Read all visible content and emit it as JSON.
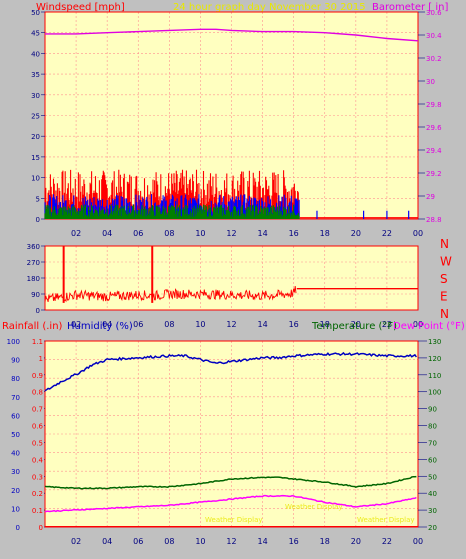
{
  "header": {
    "windspeed_label": "Windspeed [mph]",
    "title": "24 hour graph day   November 30 2015",
    "barometer_label": "Barometer [ in]"
  },
  "colors": {
    "background": "#c0c0c0",
    "plot_bg": "#ffffc0",
    "grid": "#ff9090",
    "axis_text": "#000080",
    "title_text": "#e8e800",
    "wind_avg": "#008000",
    "wind_gust_blue": "#0000ff",
    "wind_gust_red": "#ff0000",
    "barometer": "#e000e0",
    "direction": "#ff0000",
    "humidity": "#0000c0",
    "temperature": "#006400",
    "dewpoint": "#ff00ff",
    "rain": "#ff0000"
  },
  "x_ticks": [
    "02",
    "04",
    "06",
    "08",
    "10",
    "12",
    "14",
    "16",
    "18",
    "20",
    "22",
    "00"
  ],
  "chart_data": [
    {
      "id": "wind_baro",
      "type": "line",
      "ylabel": "Windspeed [mph]",
      "y2label": "Barometer [ in]",
      "ylim": [
        0,
        50
      ],
      "y_ticks": [
        0,
        5,
        10,
        15,
        20,
        25,
        30,
        35,
        40,
        45,
        50
      ],
      "y2lim": [
        28.8,
        30.6
      ],
      "y2_ticks": [
        "28.8",
        "29",
        "29.2",
        "29.4",
        "29.6",
        "29.8",
        "30",
        "30.2",
        "30.4",
        "30.6"
      ],
      "barometer": {
        "x": [
          0,
          2,
          4,
          6,
          8,
          10,
          11,
          12,
          14,
          16,
          18,
          20,
          22,
          24
        ],
        "y": [
          30.41,
          30.41,
          30.42,
          30.43,
          30.44,
          30.45,
          30.45,
          30.44,
          30.43,
          30.43,
          30.42,
          30.4,
          30.37,
          30.35
        ]
      },
      "wind_series": [
        {
          "color": "#ff0000",
          "level_max": 12,
          "end_hour": 16.4
        },
        {
          "color": "#0000ff",
          "level_max": 6,
          "end_hour": 16.4
        },
        {
          "color": "#008000",
          "level_max": 3.5,
          "end_hour": 16.4
        }
      ]
    },
    {
      "id": "direction",
      "type": "line",
      "ylim": [
        0,
        360
      ],
      "y_ticks": [
        "0",
        "90",
        "180",
        "270",
        "360"
      ],
      "y2_labels": [
        "N",
        "W",
        "S",
        "E",
        "N"
      ],
      "direction": {
        "x": [
          0,
          1,
          2,
          4,
          6,
          7,
          8,
          10,
          12,
          14,
          15,
          16,
          16.2,
          24
        ],
        "y": [
          60,
          70,
          85,
          75,
          85,
          80,
          90,
          90,
          85,
          80,
          85,
          95,
          120,
          120
        ]
      },
      "spikes": [
        {
          "x": 1.2,
          "y": 360
        },
        {
          "x": 6.9,
          "y": 360
        }
      ]
    },
    {
      "id": "hum_temp",
      "type": "line",
      "y_rain_label": "Rainfall (.in)",
      "y_hum_label": "Humidity (%)",
      "y_temp_label": "Temperature (°F)",
      "y_dew_label": "Dew Point (°F)",
      "rain_ticks": [
        "0",
        "0.1",
        "0.2",
        "0.3",
        "0.4",
        "0.5",
        "0.6",
        "0.7",
        "0.8",
        "0.9",
        "1",
        "1.1"
      ],
      "hum_ticks": [
        "0",
        "10",
        "20",
        "30",
        "40",
        "50",
        "60",
        "70",
        "80",
        "90",
        "100"
      ],
      "temp_ticks": [
        "20",
        "30",
        "40",
        "50",
        "60",
        "70",
        "80",
        "90",
        "100",
        "110",
        "120",
        "130"
      ],
      "hum_lim": [
        0,
        100
      ],
      "temp_lim": [
        15,
        135
      ],
      "humidity": {
        "x": [
          0,
          1,
          2,
          3,
          4,
          6,
          8,
          9,
          10,
          11,
          12,
          13,
          14,
          15,
          16,
          18,
          20,
          22,
          24
        ],
        "y": [
          73,
          78,
          82,
          87,
          90,
          91,
          92,
          92,
          90,
          88,
          89,
          90,
          91,
          91,
          92,
          93,
          93,
          92,
          92
        ]
      },
      "temperature": {
        "x": [
          0,
          2,
          4,
          6,
          8,
          10,
          12,
          14,
          15,
          16,
          18,
          20,
          22,
          24
        ],
        "y": [
          41,
          40,
          40,
          41,
          41,
          43,
          46,
          47,
          47,
          46,
          44,
          41,
          43,
          48
        ]
      },
      "dewpoint": {
        "x": [
          0,
          2,
          4,
          6,
          8,
          10,
          12,
          14,
          16,
          18,
          20,
          22,
          24
        ],
        "y": [
          25,
          26,
          27,
          28,
          29,
          31,
          33,
          35,
          35,
          31,
          28,
          30,
          34
        ]
      },
      "rain": {
        "x": [
          0,
          24
        ],
        "y": [
          0,
          0
        ]
      }
    }
  ],
  "footer": {
    "left": "Weather Display",
    "center": "Weather Display",
    "right": "Weather Display"
  }
}
